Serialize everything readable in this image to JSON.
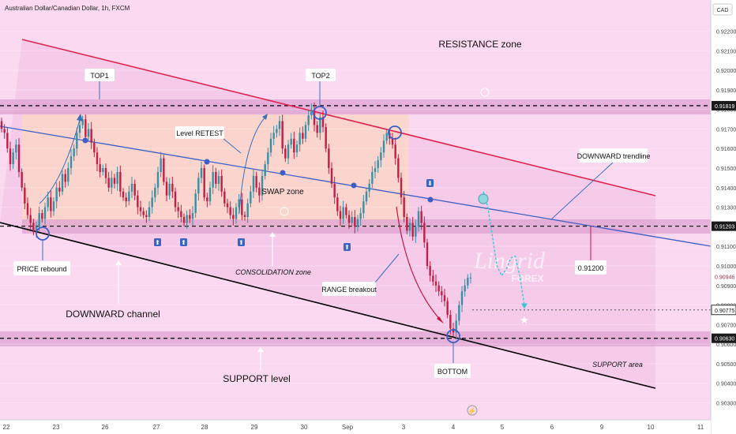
{
  "header": {
    "symbol_title": "Australian Dollar/Canadian Dollar, 1h, FXCM",
    "currency_button": "CAD"
  },
  "watermark": {
    "line1": "Lingrid",
    "line2": "FOREX"
  },
  "colors": {
    "background": "#fbd9f0",
    "up_candle": "#3a8fa2",
    "down_candle": "#bf1f47",
    "resistance_line": "#e0234e",
    "trendline": "#3b5fc4",
    "channel_bottom": "#000000",
    "zone_fill": "#e3a2d3",
    "consolidation_fill": "#fbd6c9",
    "projection": "#3cc6d6",
    "arrow_red": "#c0163f",
    "arrow_blue": "#3b6fb8"
  },
  "annotations": {
    "resistance_zone": "RESISTANCE zone",
    "top1": "TOP1",
    "top2": "TOP2",
    "level_retest": "Level RETEST",
    "downward_trendline": "DOWNWARD trendline",
    "swap_zone": "SWAP zone",
    "price_rebound": "PRICE rebound",
    "consolidation_zone": "CONSOLIDATION zone",
    "range_breakout": "RANGE breakout",
    "level_box": "0.91200",
    "downward_channel": "DOWNWARD channel",
    "support_area": "SUPPORT area",
    "bottom": "BOTTOM",
    "support_level": "SUPPORT level"
  },
  "chart_data": {
    "type": "candlestick",
    "ylim": [
      0.9022,
      0.9226
    ],
    "y_ticks": [
      "0.92200",
      "0.92100",
      "0.92000",
      "0.91900",
      "0.91800",
      "0.91700",
      "0.91600",
      "0.91500",
      "0.91400",
      "0.91300",
      "0.91200",
      "0.91100",
      "0.91000",
      "0.90900",
      "0.90800",
      "0.90700",
      "0.90600",
      "0.90500",
      "0.90400",
      "0.90300"
    ],
    "x_ticks": [
      "22",
      "23",
      "26",
      "27",
      "28",
      "29",
      "30",
      "Sep",
      "3",
      "4",
      "5",
      "6",
      "9",
      "10",
      "11"
    ],
    "price_labels": [
      {
        "value": 0.91819,
        "label": "0.91819",
        "style": "dark"
      },
      {
        "value": 0.91203,
        "label": "0.91203",
        "style": "dark"
      },
      {
        "value": 0.90946,
        "label": "0.90946",
        "style": "red"
      },
      {
        "value": 0.90775,
        "label": "0.90775",
        "style": "outline"
      },
      {
        "value": 0.9063,
        "label": "0.90630",
        "style": "dark"
      }
    ],
    "horizontal_levels": [
      0.91819,
      0.91203,
      0.9063
    ],
    "close_path": [
      0.917,
      0.9168,
      0.916,
      0.9152,
      0.9158,
      0.9162,
      0.9148,
      0.914,
      0.9132,
      0.9126,
      0.9122,
      0.9118,
      0.912,
      0.9127,
      0.9124,
      0.913,
      0.9135,
      0.9128,
      0.9133,
      0.914,
      0.9138,
      0.9147,
      0.9143,
      0.915,
      0.9156,
      0.916,
      0.9168,
      0.9172,
      0.9175,
      0.9166,
      0.917,
      0.9163,
      0.9158,
      0.9152,
      0.9148,
      0.915,
      0.9145,
      0.914,
      0.9145,
      0.9142,
      0.9148,
      0.9138,
      0.9135,
      0.9133,
      0.9138,
      0.9142,
      0.9136,
      0.913,
      0.9128,
      0.9126,
      0.9125,
      0.913,
      0.9135,
      0.914,
      0.9148,
      0.9155,
      0.9143,
      0.9136,
      0.9142,
      0.9138,
      0.913,
      0.9128,
      0.9125,
      0.9122,
      0.9126,
      0.9124,
      0.9127,
      0.9137,
      0.9145,
      0.915,
      0.9135,
      0.9133,
      0.914,
      0.9148,
      0.9142,
      0.9146,
      0.9138,
      0.9132,
      0.913,
      0.9126,
      0.9124,
      0.913,
      0.9134,
      0.9126,
      0.9125,
      0.9132,
      0.9138,
      0.9146,
      0.914,
      0.9136,
      0.9146,
      0.9152,
      0.9158,
      0.9165,
      0.9168,
      0.917,
      0.9174,
      0.916,
      0.9155,
      0.9162,
      0.9165,
      0.9158,
      0.9162,
      0.9168,
      0.9165,
      0.9172,
      0.9177,
      0.918,
      0.9172,
      0.9168,
      0.9176,
      0.9171,
      0.916,
      0.915,
      0.9142,
      0.9135,
      0.9128,
      0.9124,
      0.913,
      0.9126,
      0.9122,
      0.9125,
      0.912,
      0.9124,
      0.9127,
      0.9133,
      0.9138,
      0.9142,
      0.9148,
      0.915,
      0.9154,
      0.9158,
      0.9164,
      0.9168,
      0.9165,
      0.9162,
      0.9155,
      0.9145,
      0.9135,
      0.9125,
      0.9118,
      0.9122,
      0.9115,
      0.912,
      0.9128,
      0.9122,
      0.9112,
      0.91,
      0.9095,
      0.9092,
      0.909,
      0.9087,
      0.9085,
      0.9082,
      0.9075,
      0.9068,
      0.9066,
      0.9072,
      0.908,
      0.9087,
      0.909,
      0.9094,
      0.9094
    ],
    "projection": [
      0.9138,
      0.913,
      0.9115,
      0.91,
      0.9095,
      0.9098,
      0.9104,
      0.9105,
      0.9095,
      0.908
    ],
    "projection_target": 0.90775
  }
}
